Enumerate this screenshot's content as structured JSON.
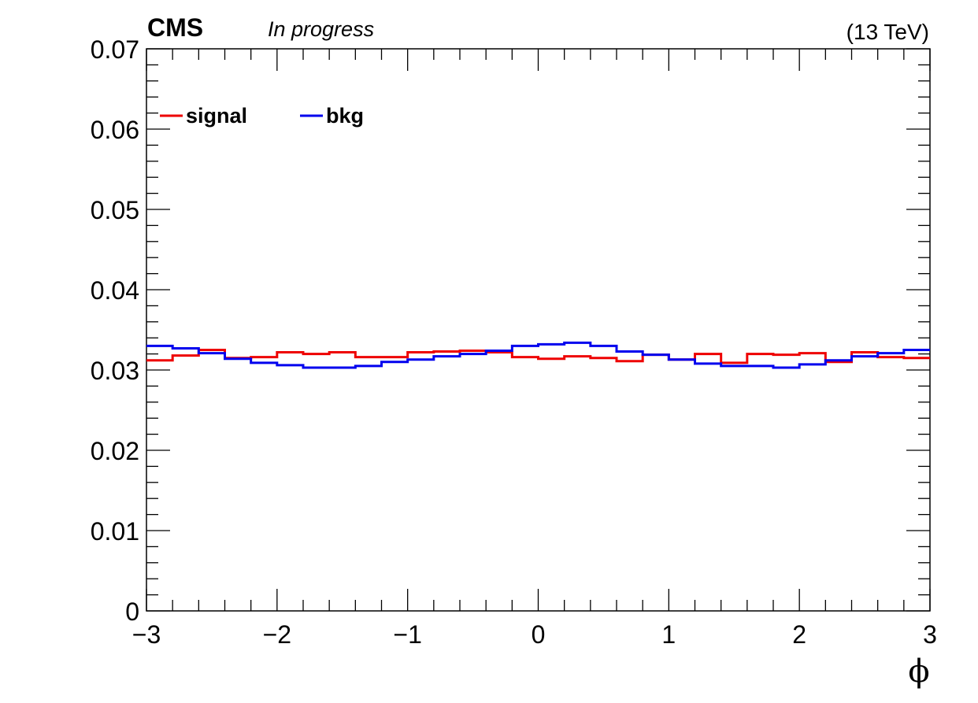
{
  "header": {
    "experiment": "CMS",
    "status": "In progress",
    "energy": "(13 TeV)"
  },
  "chart_data": {
    "type": "line",
    "drawstyle": "step",
    "title": "",
    "xlabel": "ϕ",
    "ylabel": "",
    "xlim": [
      -3,
      3
    ],
    "ylim": [
      0,
      0.07
    ],
    "x_ticks": [
      -3,
      -2,
      -1,
      0,
      1,
      2,
      3
    ],
    "x_tick_labels": [
      "−3",
      "−2",
      "−1",
      "0",
      "1",
      "2",
      "3"
    ],
    "y_ticks": [
      0,
      0.01,
      0.02,
      0.03,
      0.04,
      0.05,
      0.06,
      0.07
    ],
    "y_tick_labels": [
      "0",
      "0.01",
      "0.02",
      "0.03",
      "0.04",
      "0.05",
      "0.06",
      "0.07"
    ],
    "grid": false,
    "legend_position": "top-left",
    "bin_edges": [
      -3.0,
      -2.8,
      -2.6,
      -2.4,
      -2.2,
      -2.0,
      -1.8,
      -1.6,
      -1.4,
      -1.2,
      -1.0,
      -0.8,
      -0.6,
      -0.4,
      -0.2,
      0.0,
      0.2,
      0.4,
      0.6,
      0.8,
      1.0,
      1.2,
      1.4,
      1.6,
      1.8,
      2.0,
      2.2,
      2.4,
      2.6,
      2.8,
      3.0
    ],
    "series": [
      {
        "name": "signal",
        "color": "#ee0000",
        "values": [
          0.0312,
          0.0318,
          0.0325,
          0.0315,
          0.0316,
          0.0322,
          0.032,
          0.0322,
          0.0316,
          0.0316,
          0.0322,
          0.0323,
          0.0324,
          0.0322,
          0.0316,
          0.0314,
          0.0317,
          0.0315,
          0.0311,
          0.0319,
          0.0313,
          0.032,
          0.0309,
          0.032,
          0.0319,
          0.0321,
          0.031,
          0.0322,
          0.0316,
          0.0315
        ]
      },
      {
        "name": "bkg",
        "color": "#0000ee",
        "values": [
          0.033,
          0.0327,
          0.0321,
          0.0314,
          0.0309,
          0.0306,
          0.0303,
          0.0303,
          0.0305,
          0.031,
          0.0313,
          0.0317,
          0.032,
          0.0324,
          0.033,
          0.0332,
          0.0334,
          0.033,
          0.0323,
          0.0319,
          0.0313,
          0.0308,
          0.0305,
          0.0305,
          0.0303,
          0.0307,
          0.0312,
          0.0317,
          0.0321,
          0.0325
        ]
      }
    ]
  }
}
